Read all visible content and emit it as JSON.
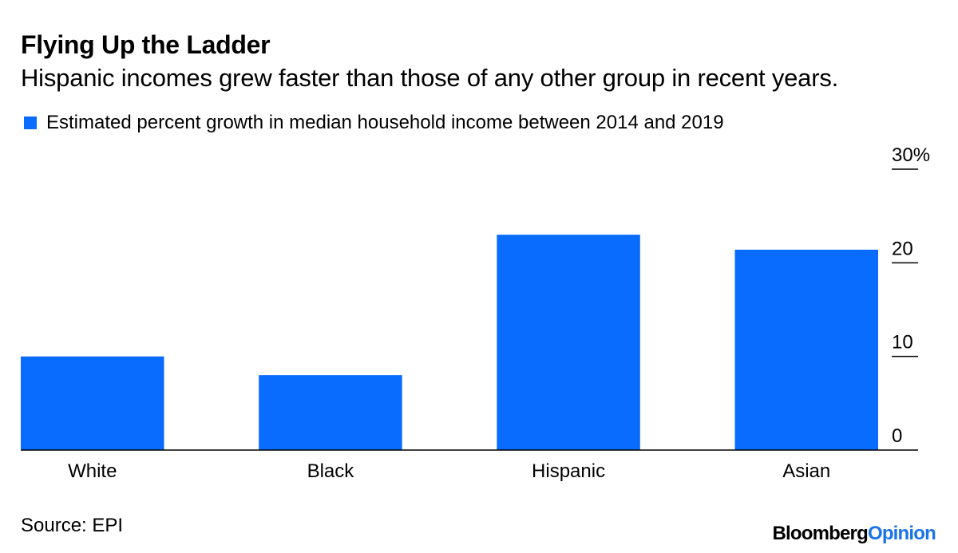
{
  "header": {
    "title": "Flying Up the Ladder",
    "subtitle": "Hispanic incomes grew faster than those of any other group in recent years."
  },
  "legend": {
    "label": "Estimated percent growth in median household income between 2014 and 2019",
    "color": "#0a6cff"
  },
  "chart_data": {
    "type": "bar",
    "title": "Flying Up the Ladder",
    "subtitle": "Hispanic incomes grew faster than those of any other group in recent years.",
    "categories": [
      "White",
      "Black",
      "Hispanic",
      "Asian"
    ],
    "series": [
      {
        "name": "Estimated percent growth in median household income between 2014 and 2019",
        "values": [
          10.0,
          8.0,
          23.0,
          21.4
        ]
      }
    ],
    "xlabel": "",
    "ylabel": "",
    "ylim": [
      0,
      30
    ],
    "yticks": [
      0,
      10,
      20,
      30
    ],
    "ytick_labels": [
      "0",
      "10",
      "20",
      "30%"
    ],
    "y_axis_side": "right",
    "grid": false,
    "bar_color": "#0a6cff"
  },
  "footer": {
    "source": "Source: EPI",
    "brand_main": "Bloomberg",
    "brand_accent": "Opinion"
  }
}
